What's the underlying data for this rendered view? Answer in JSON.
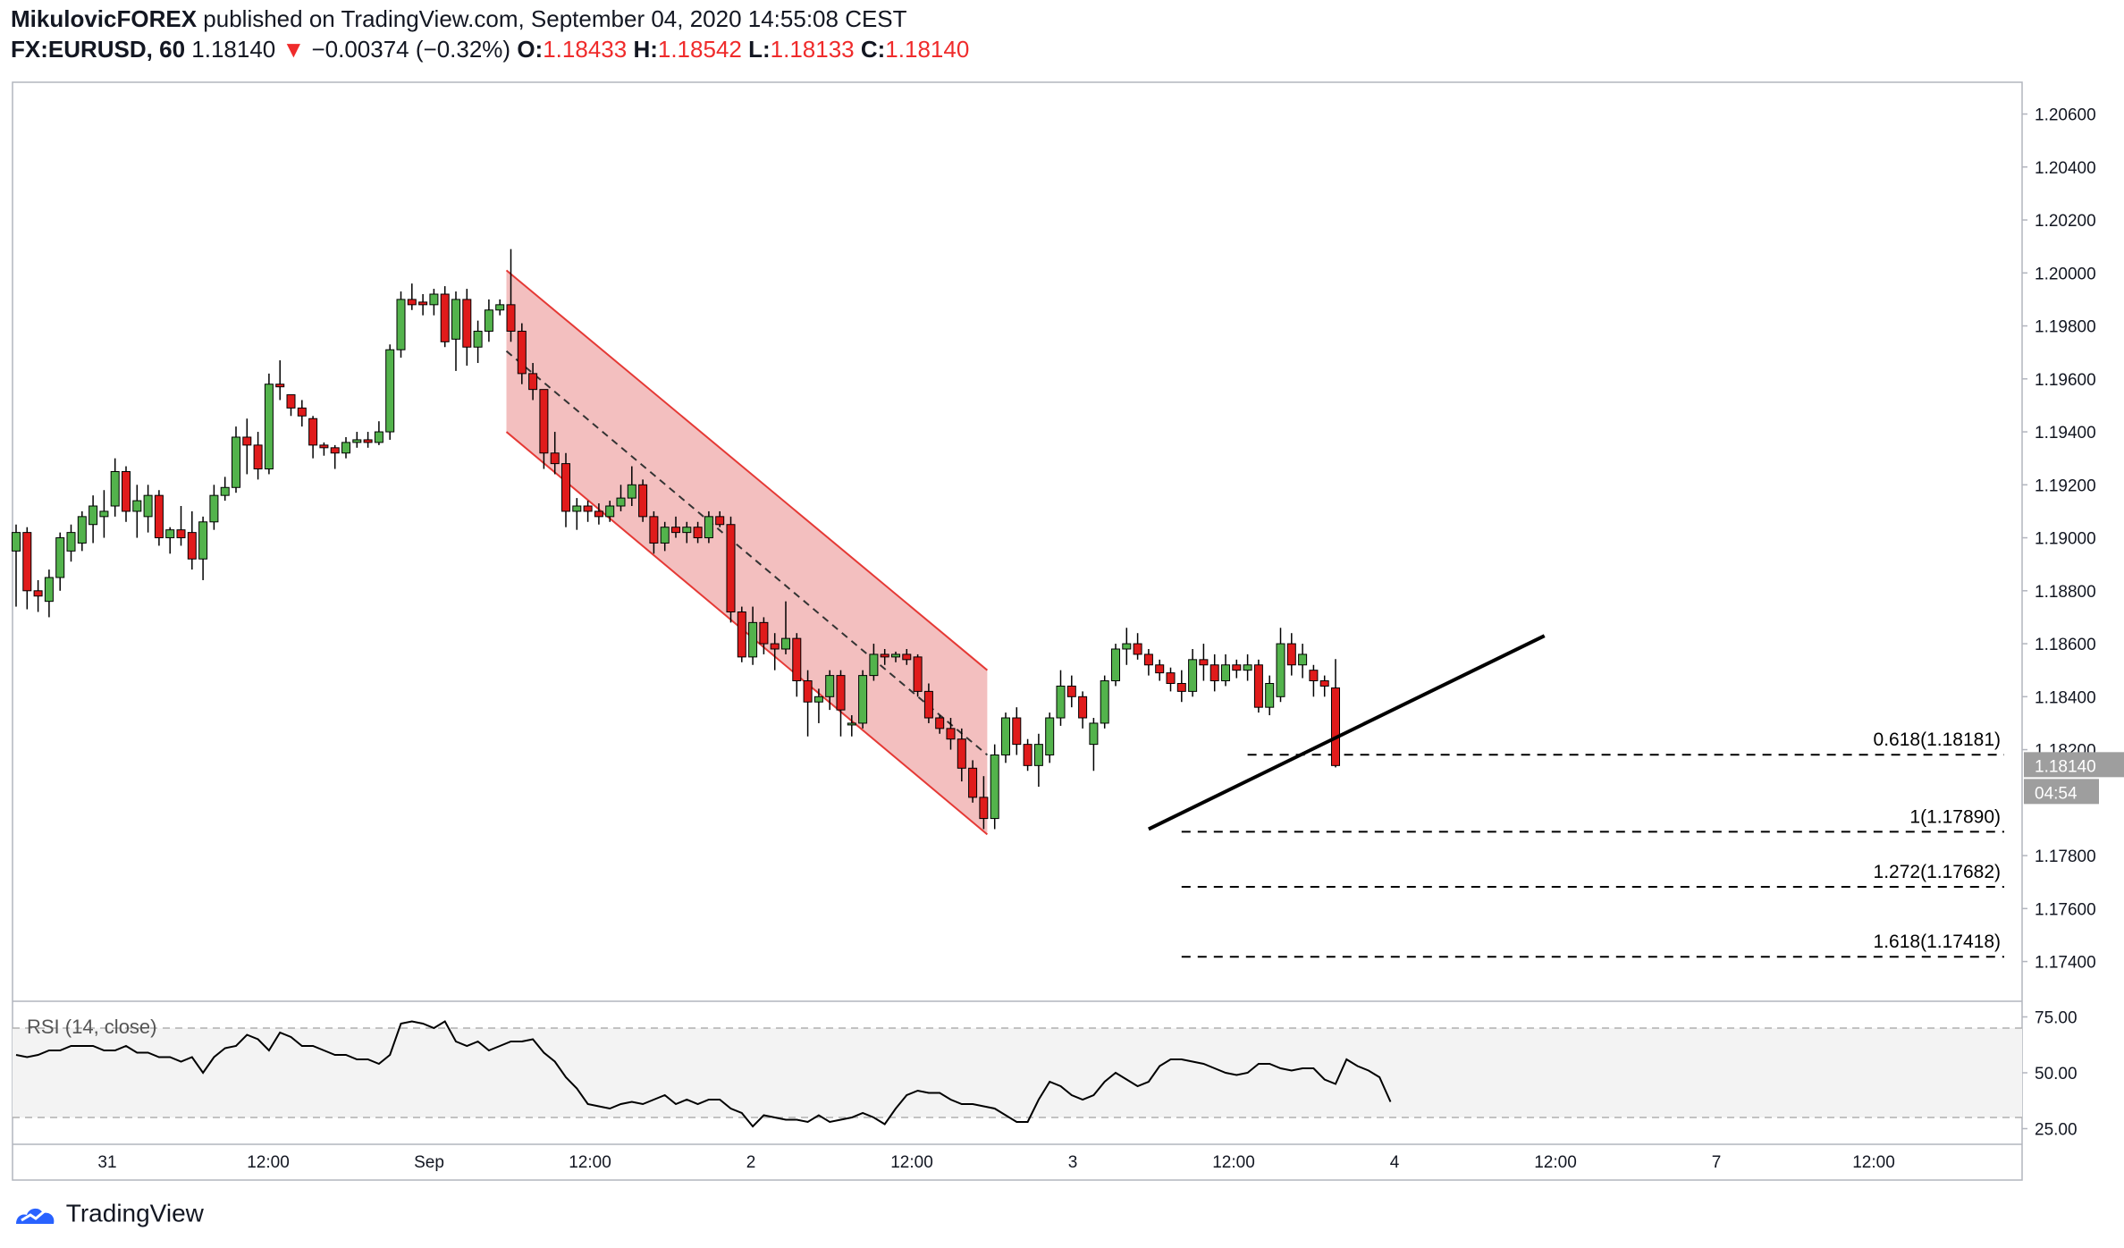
{
  "header": {
    "author": "MikulovicFOREX",
    "published_text": "published on TradingView.com, September 04, 2020 14:55:08 CEST",
    "symbol": "FX:EURUSD, 60",
    "last": "1.18140",
    "change": "−0.00374 (−0.32%)",
    "o_label": "O:",
    "o": "1.18433",
    "h_label": "H:",
    "h": "1.18542",
    "l_label": "L:",
    "l": "1.18133",
    "c_label": "C:",
    "c": "1.18140"
  },
  "colors": {
    "up": "#53b34c",
    "down": "#e01b1b",
    "channel_fill": "#f2b8b8",
    "channel_line": "#e53935",
    "axis_text": "#131722",
    "grid_border": "#b2b5be"
  },
  "footer": {
    "brand": "TradingView"
  },
  "chart_data": [
    {
      "type": "candlestick",
      "title": "",
      "y_axis_ticks": [
        "1.20600",
        "1.20400",
        "1.20200",
        "1.20000",
        "1.19800",
        "1.19600",
        "1.19400",
        "1.19200",
        "1.19000",
        "1.18800",
        "1.18600",
        "1.18400",
        "1.18200",
        "1.17800",
        "1.17600",
        "1.17400"
      ],
      "x_axis_ticks": [
        "31",
        "12:00",
        "Sep",
        "12:00",
        "2",
        "12:00",
        "3",
        "12:00",
        "4",
        "12:00",
        "7",
        "12:00"
      ],
      "last_price_label": "1.18140",
      "countdown_label": "04:54",
      "ylim": [
        1.1725,
        1.2072
      ],
      "candles": [
        [
          1.1895,
          1.1905,
          1.1874,
          1.1902
        ],
        [
          1.1902,
          1.1904,
          1.1873,
          1.188
        ],
        [
          1.188,
          1.1884,
          1.1872,
          1.1878
        ],
        [
          1.1876,
          1.1888,
          1.187,
          1.1885
        ],
        [
          1.1885,
          1.1902,
          1.188,
          1.19
        ],
        [
          1.1895,
          1.1905,
          1.1891,
          1.1902
        ],
        [
          1.1898,
          1.191,
          1.1895,
          1.1908
        ],
        [
          1.1905,
          1.1916,
          1.1898,
          1.1912
        ],
        [
          1.1908,
          1.1918,
          1.19,
          1.191
        ],
        [
          1.1912,
          1.193,
          1.1908,
          1.1925
        ],
        [
          1.1925,
          1.1927,
          1.1906,
          1.191
        ],
        [
          1.191,
          1.192,
          1.19,
          1.1914
        ],
        [
          1.1908,
          1.192,
          1.1902,
          1.1916
        ],
        [
          1.1916,
          1.1918,
          1.1897,
          1.19
        ],
        [
          1.19,
          1.1904,
          1.1894,
          1.1903
        ],
        [
          1.1903,
          1.1912,
          1.1897,
          1.19
        ],
        [
          1.1902,
          1.191,
          1.1888,
          1.1892
        ],
        [
          1.1892,
          1.1908,
          1.1884,
          1.1906
        ],
        [
          1.1906,
          1.192,
          1.1903,
          1.1916
        ],
        [
          1.1916,
          1.1923,
          1.1914,
          1.1919
        ],
        [
          1.1919,
          1.1942,
          1.1917,
          1.1938
        ],
        [
          1.1938,
          1.1945,
          1.1924,
          1.1935
        ],
        [
          1.1935,
          1.194,
          1.1922,
          1.1926
        ],
        [
          1.1926,
          1.1962,
          1.1924,
          1.1958
        ],
        [
          1.1958,
          1.1967,
          1.1952,
          1.1957
        ],
        [
          1.1954,
          1.1954,
          1.1946,
          1.1949
        ],
        [
          1.1949,
          1.1952,
          1.1942,
          1.1946
        ],
        [
          1.1945,
          1.1946,
          1.193,
          1.1935
        ],
        [
          1.1935,
          1.1936,
          1.1931,
          1.1934
        ],
        [
          1.1934,
          1.1935,
          1.1926,
          1.1932
        ],
        [
          1.1932,
          1.1938,
          1.193,
          1.1936
        ],
        [
          1.1936,
          1.194,
          1.1934,
          1.1937
        ],
        [
          1.1937,
          1.194,
          1.1934,
          1.1936
        ],
        [
          1.1936,
          1.1944,
          1.1935,
          1.194
        ],
        [
          1.194,
          1.1973,
          1.1937,
          1.1971
        ],
        [
          1.1971,
          1.1993,
          1.1968,
          1.199
        ],
        [
          1.199,
          1.1996,
          1.1986,
          1.1988
        ],
        [
          1.1989,
          1.1992,
          1.1984,
          1.1988
        ],
        [
          1.1988,
          1.1994,
          1.1984,
          1.1992
        ],
        [
          1.1992,
          1.1995,
          1.1972,
          1.1974
        ],
        [
          1.1975,
          1.1993,
          1.1963,
          1.199
        ],
        [
          1.199,
          1.1994,
          1.1965,
          1.1972
        ],
        [
          1.1972,
          1.1982,
          1.1966,
          1.1978
        ],
        [
          1.1978,
          1.199,
          1.1974,
          1.1986
        ],
        [
          1.1986,
          1.199,
          1.1984,
          1.1988
        ],
        [
          1.1988,
          1.2009,
          1.1974,
          1.1978
        ],
        [
          1.1978,
          1.1981,
          1.1958,
          1.1962
        ],
        [
          1.1962,
          1.1966,
          1.1952,
          1.1956
        ],
        [
          1.1956,
          1.1956,
          1.1926,
          1.1932
        ],
        [
          1.1932,
          1.194,
          1.1924,
          1.1928
        ],
        [
          1.1928,
          1.1932,
          1.1904,
          1.191
        ],
        [
          1.191,
          1.1915,
          1.1903,
          1.1912
        ],
        [
          1.1912,
          1.1914,
          1.1906,
          1.191
        ],
        [
          1.191,
          1.1913,
          1.1905,
          1.1908
        ],
        [
          1.1908,
          1.1914,
          1.1906,
          1.1912
        ],
        [
          1.1912,
          1.192,
          1.191,
          1.1915
        ],
        [
          1.1915,
          1.1927,
          1.1912,
          1.192
        ],
        [
          1.192,
          1.1922,
          1.1906,
          1.1908
        ],
        [
          1.1908,
          1.191,
          1.1894,
          1.1898
        ],
        [
          1.1898,
          1.1906,
          1.1895,
          1.1904
        ],
        [
          1.1904,
          1.1908,
          1.19,
          1.1902
        ],
        [
          1.1902,
          1.1906,
          1.1898,
          1.1904
        ],
        [
          1.1904,
          1.1906,
          1.1898,
          1.19
        ],
        [
          1.19,
          1.191,
          1.1898,
          1.1908
        ],
        [
          1.1908,
          1.191,
          1.1904,
          1.1905
        ],
        [
          1.1905,
          1.1908,
          1.1868,
          1.1872
        ],
        [
          1.1872,
          1.1874,
          1.1853,
          1.1855
        ],
        [
          1.1855,
          1.1874,
          1.1852,
          1.1868
        ],
        [
          1.1868,
          1.187,
          1.1856,
          1.186
        ],
        [
          1.186,
          1.1864,
          1.185,
          1.1858
        ],
        [
          1.1858,
          1.1876,
          1.1856,
          1.1862
        ],
        [
          1.1862,
          1.1864,
          1.184,
          1.1846
        ],
        [
          1.1846,
          1.185,
          1.1825,
          1.1838
        ],
        [
          1.1838,
          1.1843,
          1.183,
          1.184
        ],
        [
          1.184,
          1.185,
          1.1835,
          1.1848
        ],
        [
          1.1848,
          1.185,
          1.1825,
          1.1835
        ],
        [
          1.183,
          1.1833,
          1.1825,
          1.183
        ],
        [
          1.183,
          1.185,
          1.1828,
          1.1848
        ],
        [
          1.1848,
          1.186,
          1.1846,
          1.1856
        ],
        [
          1.1856,
          1.1858,
          1.1852,
          1.1855
        ],
        [
          1.1855,
          1.1857,
          1.1853,
          1.1856
        ],
        [
          1.1856,
          1.1858,
          1.1852,
          1.1854
        ],
        [
          1.1855,
          1.1856,
          1.184,
          1.1842
        ],
        [
          1.1842,
          1.1845,
          1.183,
          1.1832
        ],
        [
          1.1832,
          1.1833,
          1.1826,
          1.1828
        ],
        [
          1.1828,
          1.1832,
          1.182,
          1.1824
        ],
        [
          1.1824,
          1.1828,
          1.1808,
          1.1813
        ],
        [
          1.1813,
          1.1816,
          1.18,
          1.1802
        ],
        [
          1.1802,
          1.181,
          1.179,
          1.1794
        ],
        [
          1.1794,
          1.1822,
          1.179,
          1.1818
        ],
        [
          1.1818,
          1.1834,
          1.1815,
          1.1832
        ],
        [
          1.1832,
          1.1836,
          1.1818,
          1.1822
        ],
        [
          1.1822,
          1.1824,
          1.1812,
          1.1814
        ],
        [
          1.1814,
          1.1826,
          1.1806,
          1.1822
        ],
        [
          1.1818,
          1.1834,
          1.1815,
          1.1832
        ],
        [
          1.1832,
          1.185,
          1.1829,
          1.1844
        ],
        [
          1.1844,
          1.1848,
          1.1836,
          1.184
        ],
        [
          1.184,
          1.1842,
          1.1828,
          1.1832
        ],
        [
          1.1822,
          1.1832,
          1.1812,
          1.183
        ],
        [
          1.183,
          1.1848,
          1.1828,
          1.1846
        ],
        [
          1.1846,
          1.186,
          1.1844,
          1.1858
        ],
        [
          1.1858,
          1.1866,
          1.1852,
          1.186
        ],
        [
          1.186,
          1.1864,
          1.1854,
          1.1856
        ],
        [
          1.1856,
          1.1858,
          1.1848,
          1.1852
        ],
        [
          1.1852,
          1.1854,
          1.1846,
          1.1849
        ],
        [
          1.1849,
          1.1851,
          1.1842,
          1.1845
        ],
        [
          1.1845,
          1.185,
          1.1838,
          1.1842
        ],
        [
          1.1842,
          1.1858,
          1.184,
          1.1854
        ],
        [
          1.1854,
          1.186,
          1.1846,
          1.1852
        ],
        [
          1.1852,
          1.1856,
          1.1842,
          1.1846
        ],
        [
          1.1846,
          1.1856,
          1.1844,
          1.1852
        ],
        [
          1.1852,
          1.1854,
          1.1847,
          1.185
        ],
        [
          1.185,
          1.1856,
          1.1846,
          1.1852
        ],
        [
          1.1852,
          1.1854,
          1.1834,
          1.1836
        ],
        [
          1.1836,
          1.1848,
          1.1833,
          1.1845
        ],
        [
          1.184,
          1.1866,
          1.1838,
          1.186
        ],
        [
          1.186,
          1.1864,
          1.1848,
          1.1852
        ],
        [
          1.1852,
          1.186,
          1.1847,
          1.1856
        ],
        [
          1.185,
          1.1852,
          1.184,
          1.1846
        ],
        [
          1.1846,
          1.1848,
          1.184,
          1.1844
        ],
        [
          1.18433,
          1.18542,
          1.18133,
          1.1814
        ]
      ],
      "channel": {
        "upper_start": 1.2001,
        "upper_end": 1.185,
        "lower_start": 1.194,
        "lower_end": 1.1788,
        "mid_end": 1.1818
      },
      "trendline": {
        "start": 1.179,
        "end": 1.1863
      },
      "fib_levels": [
        {
          "label": "0.618(1.18181)",
          "value": 1.18181
        },
        {
          "label": "1(1.17890)",
          "value": 1.1789
        },
        {
          "label": "1.272(1.17682)",
          "value": 1.17682
        },
        {
          "label": "1.618(1.17418)",
          "value": 1.17418
        }
      ]
    },
    {
      "type": "line",
      "title": "RSI (14, close)",
      "ylim": [
        18,
        82
      ],
      "y_axis_ticks": [
        "75.00",
        "50.00",
        "25.00"
      ],
      "band": [
        30,
        70
      ],
      "values": [
        58,
        57,
        58,
        60,
        60,
        62,
        62,
        62,
        60,
        60,
        62,
        59,
        59,
        57,
        57,
        55,
        57,
        50,
        57,
        61,
        62,
        67,
        65,
        60,
        68,
        66,
        62,
        62,
        60,
        58,
        58,
        56,
        56,
        54,
        58,
        72,
        73,
        72,
        70,
        73,
        64,
        62,
        64,
        60,
        62,
        64,
        64,
        65,
        59,
        55,
        48,
        43,
        36,
        35,
        34,
        36,
        37,
        36,
        38,
        40,
        36,
        38,
        36,
        38,
        38,
        34,
        32,
        26,
        31,
        30,
        29,
        29,
        28,
        31,
        28,
        29,
        30,
        32,
        30,
        27,
        34,
        40,
        42,
        41,
        41,
        38,
        36,
        36,
        35,
        34,
        31,
        28,
        28,
        38,
        46,
        44,
        40,
        38,
        40,
        46,
        50,
        47,
        44,
        46,
        53,
        56,
        56,
        55,
        54,
        52,
        50,
        49,
        50,
        54,
        54,
        52,
        51,
        52,
        52,
        47,
        45,
        56,
        53,
        51,
        48,
        37
      ]
    }
  ]
}
